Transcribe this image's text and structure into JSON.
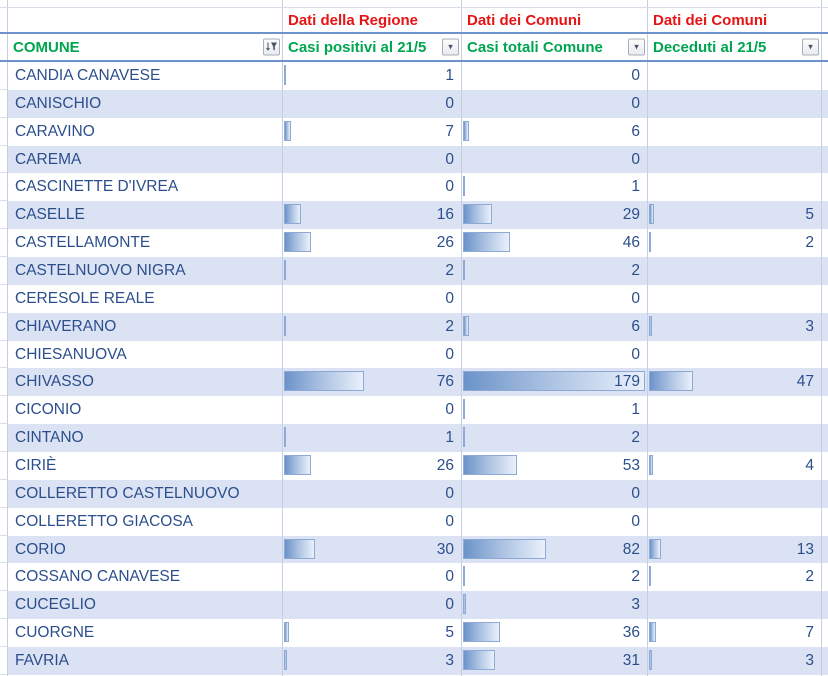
{
  "table": {
    "group_headers": {
      "comune": "",
      "casi_positivi": "Dati della Regione",
      "casi_totali": "Dati dei Comuni",
      "deceduti": "Dati dei Comuni"
    },
    "columns": {
      "comune": "COMUNE",
      "casi_positivi": "Casi positivi al 21/5",
      "casi_totali": "Casi totali Comune",
      "deceduti": "Deceduti al 21/5"
    },
    "bar_scale": {
      "casi_positivi": 170,
      "casi_totali": 182,
      "deceduti": 185
    },
    "rows": [
      {
        "comune": "CANDIA CANAVESE",
        "casi_positivi": 1,
        "casi_totali": 0,
        "deceduti": null
      },
      {
        "comune": "CANISCHIO",
        "casi_positivi": 0,
        "casi_totali": 0,
        "deceduti": null
      },
      {
        "comune": "CARAVINO",
        "casi_positivi": 7,
        "casi_totali": 6,
        "deceduti": null
      },
      {
        "comune": "CAREMA",
        "casi_positivi": 0,
        "casi_totali": 0,
        "deceduti": null
      },
      {
        "comune": "CASCINETTE D'IVREA",
        "casi_positivi": 0,
        "casi_totali": 1,
        "deceduti": null
      },
      {
        "comune": "CASELLE",
        "casi_positivi": 16,
        "casi_totali": 29,
        "deceduti": 5
      },
      {
        "comune": "CASTELLAMONTE",
        "casi_positivi": 26,
        "casi_totali": 46,
        "deceduti": 2
      },
      {
        "comune": "CASTELNUOVO NIGRA",
        "casi_positivi": 2,
        "casi_totali": 2,
        "deceduti": null
      },
      {
        "comune": "CERESOLE REALE",
        "casi_positivi": 0,
        "casi_totali": 0,
        "deceduti": null
      },
      {
        "comune": "CHIAVERANO",
        "casi_positivi": 2,
        "casi_totali": 6,
        "deceduti": 3
      },
      {
        "comune": "CHIESANUOVA",
        "casi_positivi": 0,
        "casi_totali": 0,
        "deceduti": null
      },
      {
        "comune": "CHIVASSO",
        "casi_positivi": 76,
        "casi_totali": 179,
        "deceduti": 47
      },
      {
        "comune": "CICONIO",
        "casi_positivi": 0,
        "casi_totali": 1,
        "deceduti": null
      },
      {
        "comune": "CINTANO",
        "casi_positivi": 1,
        "casi_totali": 2,
        "deceduti": null
      },
      {
        "comune": "CIRIÈ",
        "casi_positivi": 26,
        "casi_totali": 53,
        "deceduti": 4
      },
      {
        "comune": "COLLERETTO CASTELNUOVO",
        "casi_positivi": 0,
        "casi_totali": 0,
        "deceduti": null
      },
      {
        "comune": "COLLERETTO GIACOSA",
        "casi_positivi": 0,
        "casi_totali": 0,
        "deceduti": null
      },
      {
        "comune": "CORIO",
        "casi_positivi": 30,
        "casi_totali": 82,
        "deceduti": 13
      },
      {
        "comune": "COSSANO CANAVESE",
        "casi_positivi": 0,
        "casi_totali": 2,
        "deceduti": 2
      },
      {
        "comune": "CUCEGLIO",
        "casi_positivi": 0,
        "casi_totali": 3,
        "deceduti": null
      },
      {
        "comune": "CUORGNE",
        "casi_positivi": 5,
        "casi_totali": 36,
        "deceduti": 7
      },
      {
        "comune": "FAVRIA",
        "casi_positivi": 3,
        "casi_totali": 31,
        "deceduti": 3
      }
    ]
  },
  "icons": {
    "comune_sort_filter": "sort-filter-icon",
    "dropdown_arrow": "▾"
  },
  "colors": {
    "band_blue": "#dbe2f3",
    "text_navy": "#2b4f8c",
    "header_red": "#e61414",
    "header_green": "#00a550",
    "header_border_blue": "#6d92cc",
    "bar_fill_start": "#6b93c9",
    "bar_fill_end": "#eaf0fb",
    "bar_border": "#8ea9d3",
    "gridline": "#c5cfe4"
  }
}
